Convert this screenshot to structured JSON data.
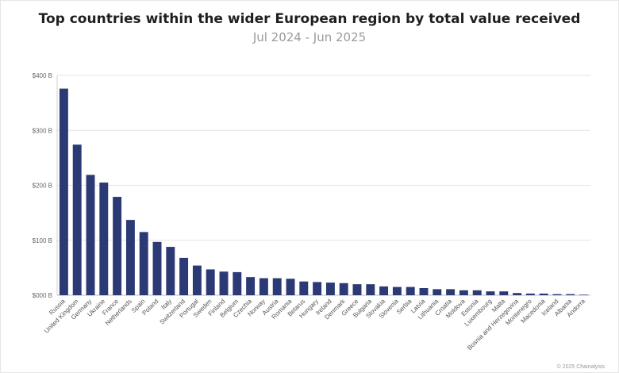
{
  "title": "Top countries within the wider European region by total value received",
  "subtitle": "Jul 2024 - Jun 2025",
  "footer": "© 2025 Chainalysis",
  "chart_data": {
    "type": "bar",
    "title": "Top countries within the wider European region by total value received",
    "subtitle": "Jul 2024 - Jun 2025",
    "xlabel": "",
    "ylabel": "",
    "ylim": [
      0,
      400
    ],
    "y_ticks": [
      0,
      100,
      200,
      300,
      400
    ],
    "y_tick_labels": [
      "$000 B",
      "$100 B",
      "$200 B",
      "$300 B",
      "$400 B"
    ],
    "grid": true,
    "bar_color": "#2b3a74",
    "categories": [
      "Russia",
      "United Kingdom",
      "Germany",
      "Ukraine",
      "France",
      "Netherlands",
      "Spain",
      "Poland",
      "Italy",
      "Switzerland",
      "Portugal",
      "Sweden",
      "Finland",
      "Belgium",
      "Czechia",
      "Norway",
      "Austria",
      "Romania",
      "Belarus",
      "Hungary",
      "Ireland",
      "Denmark",
      "Greece",
      "Bulgaria",
      "Slovakia",
      "Slovenia",
      "Serbia",
      "Latvia",
      "Lithuania",
      "Croatia",
      "Moldova",
      "Estonia",
      "Luxembourg",
      "Malta",
      "Bosnia and Herzegovina",
      "Montenegro",
      "Macedonia",
      "Iceland",
      "Albania",
      "Andorra"
    ],
    "values": [
      376,
      274,
      219,
      205,
      179,
      137,
      115,
      97,
      88,
      68,
      54,
      47,
      43,
      42,
      33,
      31,
      31,
      30,
      25,
      24,
      23,
      22,
      20,
      20,
      16,
      15,
      15,
      13,
      11,
      11,
      9,
      9,
      7,
      7,
      4,
      3,
      3,
      2,
      2,
      1
    ]
  }
}
